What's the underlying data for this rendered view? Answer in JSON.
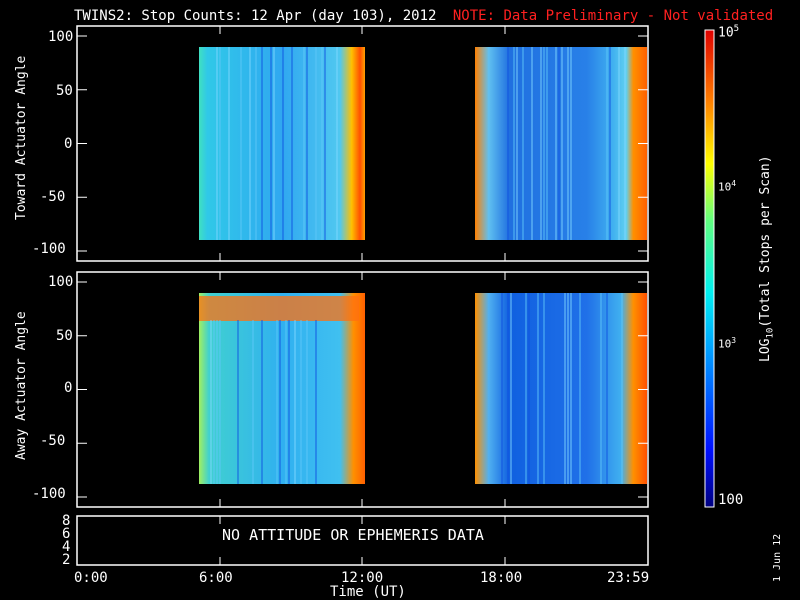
{
  "title": {
    "main": "TWINS2: Stop Counts: 12 Apr (day 103), 2012",
    "note": "NOTE: Data Preliminary - Not validated"
  },
  "colors": {
    "background": "#000000",
    "axes": "#ffffff",
    "note": "#ff2020"
  },
  "chart_data": [
    {
      "type": "heatmap",
      "panel": "top",
      "ylabel": "Toward Actuator Angle",
      "ylim": [
        -100,
        100
      ],
      "yticks": [
        "100",
        "50",
        "0",
        "-50",
        "-100"
      ],
      "xticks": [
        "0:00",
        "6:00",
        "12:00",
        "18:00",
        "23:59"
      ],
      "data_intervals_hours": [
        [
          5.3,
          12.1
        ],
        [
          17.3,
          24.0
        ]
      ],
      "angle_range": [
        -90,
        90
      ],
      "approx_log10_counts": {
        "typical": 2.8,
        "near_12UT": 4.6,
        "after_23UT": 4.3
      }
    },
    {
      "type": "heatmap",
      "panel": "middle",
      "ylabel": "Away Actuator Angle",
      "ylim": [
        -100,
        100
      ],
      "yticks": [
        "100",
        "50",
        "0",
        "-50",
        "-100"
      ],
      "xticks": [
        "0:00",
        "6:00",
        "12:00",
        "18:00",
        "23:59"
      ],
      "data_intervals_hours": [
        [
          5.3,
          12.1
        ],
        [
          17.3,
          24.0
        ]
      ],
      "angle_range": [
        -90,
        90
      ],
      "approx_log10_counts": {
        "typical": 2.8,
        "top_band_6_10UT": 4.7,
        "near_12UT": 4.5
      }
    },
    {
      "type": "line",
      "panel": "bottom",
      "yticks": [
        "8",
        "6",
        "4",
        "2"
      ],
      "xticks": [
        "0:00",
        "6:00",
        "12:00",
        "18:00",
        "23:59"
      ],
      "message": "NO ATTITUDE OR EPHEMERIS DATA"
    }
  ],
  "xlabel": "Time (UT)",
  "colorbar": {
    "label": "LOG10(Total Stops per Scan)",
    "ticks": [
      "10^5",
      "10^4",
      "10^3",
      "100"
    ],
    "range_log10": [
      2,
      5
    ]
  },
  "footer_date": "1 Jun 12"
}
